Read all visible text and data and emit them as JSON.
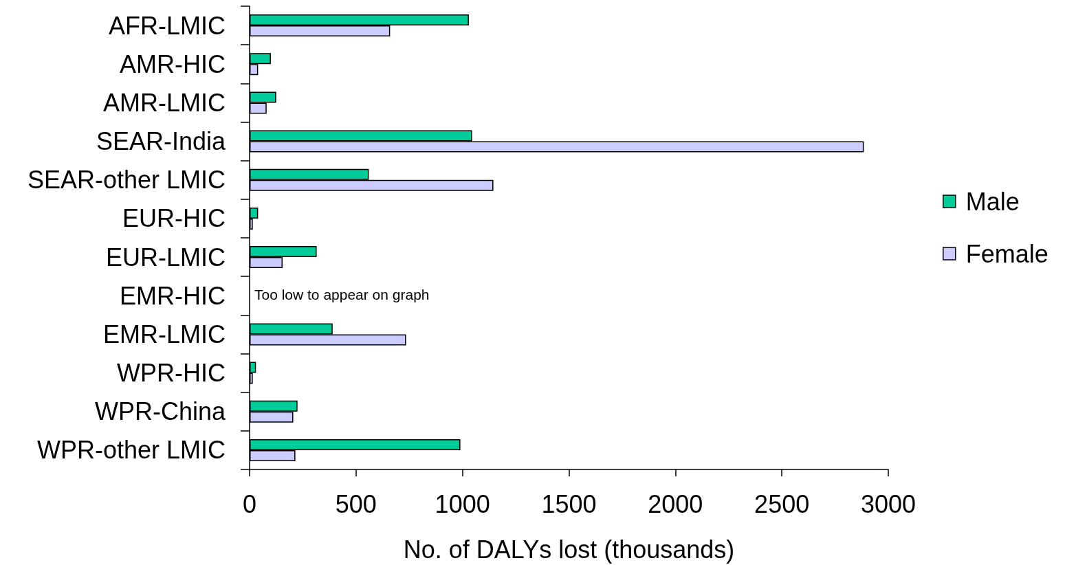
{
  "chart_data": {
    "type": "bar",
    "orientation": "horizontal",
    "xlabel": "No. of DALYs lost (thousands)",
    "categories": [
      "AFR-LMIC",
      "AMR-HIC",
      "AMR-LMIC",
      "SEAR-India",
      "SEAR-other LMIC",
      "EUR-HIC",
      "EUR-LMIC",
      "EMR-HIC",
      "EMR-LMIC",
      "WPR-HIC",
      "WPR-China",
      "WPR-other LMIC"
    ],
    "series": [
      {
        "name": "Male",
        "color": "#00cc99",
        "values": [
          1030,
          100,
          125,
          1045,
          560,
          40,
          315,
          null,
          390,
          30,
          225,
          990
        ]
      },
      {
        "name": "Female",
        "color": "#ccccff",
        "values": [
          660,
          40,
          80,
          2885,
          1145,
          15,
          155,
          null,
          735,
          15,
          205,
          215
        ]
      }
    ],
    "xlim": [
      0,
      3000
    ],
    "xticks": [
      0,
      500,
      1000,
      1500,
      2000,
      2500,
      3000
    ],
    "grid": false,
    "legend": "right",
    "annotations": [
      "Too low to appear on graph"
    ]
  }
}
